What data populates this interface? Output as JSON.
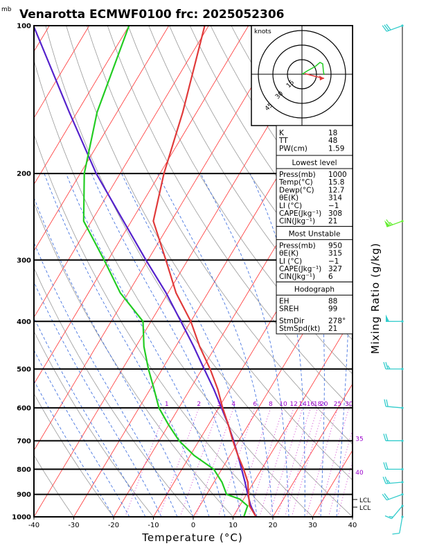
{
  "header": {
    "unit": "mb",
    "title": "Venarotta ECMWF0100  frc: 2025052306"
  },
  "chart_data": {
    "type": "skew-t",
    "xlabel": "Temperature (°C)",
    "ylabel_right": "Mixing Ratio (g/kg)",
    "x_range": [
      -40,
      40
    ],
    "x_ticks": [
      -40,
      -30,
      -20,
      -10,
      0,
      10,
      20,
      30,
      40
    ],
    "p_range": [
      1000,
      100
    ],
    "p_ticks": [
      1000,
      900,
      800,
      700,
      600,
      500,
      400,
      300,
      200,
      100
    ],
    "temperature_profile": [
      {
        "p": 1000,
        "t": 15.8
      },
      {
        "p": 950,
        "t": 12.5
      },
      {
        "p": 900,
        "t": 10.5
      },
      {
        "p": 850,
        "t": 8.5
      },
      {
        "p": 800,
        "t": 5.5
      },
      {
        "p": 750,
        "t": 2.0
      },
      {
        "p": 700,
        "t": -1.5
      },
      {
        "p": 650,
        "t": -5.0
      },
      {
        "p": 600,
        "t": -9.0
      },
      {
        "p": 550,
        "t": -13.0
      },
      {
        "p": 500,
        "t": -18.0
      },
      {
        "p": 450,
        "t": -24.0
      },
      {
        "p": 400,
        "t": -30.0
      },
      {
        "p": 350,
        "t": -38.0
      },
      {
        "p": 300,
        "t": -45.5
      },
      {
        "p": 250,
        "t": -54.5
      },
      {
        "p": 200,
        "t": -59.0
      },
      {
        "p": 150,
        "t": -63.5
      },
      {
        "p": 100,
        "t": -71.0
      }
    ],
    "dewpoint_profile": [
      {
        "p": 1000,
        "t": 12.7
      },
      {
        "p": 950,
        "t": 12.0
      },
      {
        "p": 920,
        "t": 9.0
      },
      {
        "p": 900,
        "t": 5.0
      },
      {
        "p": 850,
        "t": 2.0
      },
      {
        "p": 800,
        "t": -2.0
      },
      {
        "p": 750,
        "t": -9.0
      },
      {
        "p": 700,
        "t": -15.0
      },
      {
        "p": 650,
        "t": -20.0
      },
      {
        "p": 600,
        "t": -25.0
      },
      {
        "p": 550,
        "t": -29.0
      },
      {
        "p": 500,
        "t": -33.5
      },
      {
        "p": 450,
        "t": -38.0
      },
      {
        "p": 400,
        "t": -42.0
      },
      {
        "p": 350,
        "t": -52.0
      },
      {
        "p": 300,
        "t": -61.0
      },
      {
        "p": 250,
        "t": -72.0
      },
      {
        "p": 200,
        "t": -79.0
      },
      {
        "p": 150,
        "t": -85.0
      },
      {
        "p": 100,
        "t": -90.0
      }
    ],
    "parcel_profile": [
      {
        "p": 1000,
        "t": 15.8
      },
      {
        "p": 950,
        "t": 12.8
      },
      {
        "p": 900,
        "t": 10.3
      },
      {
        "p": 850,
        "t": 7.8
      },
      {
        "p": 800,
        "t": 5.0
      },
      {
        "p": 750,
        "t": 2.0
      },
      {
        "p": 700,
        "t": -1.3
      },
      {
        "p": 650,
        "t": -5.0
      },
      {
        "p": 600,
        "t": -9.3
      },
      {
        "p": 550,
        "t": -14.0
      },
      {
        "p": 500,
        "t": -19.5
      },
      {
        "p": 450,
        "t": -25.5
      },
      {
        "p": 400,
        "t": -32.5
      },
      {
        "p": 350,
        "t": -40.5
      },
      {
        "p": 300,
        "t": -50.5
      },
      {
        "p": 250,
        "t": -62.0
      },
      {
        "p": 200,
        "t": -76.0
      },
      {
        "p": 150,
        "t": -92.0
      },
      {
        "p": 100,
        "t": -114.0
      }
    ],
    "mixing_ratio_labels": [
      "1",
      "2",
      "3",
      "4",
      "6",
      "8",
      "10",
      "12",
      "14",
      "16",
      "18",
      "20",
      "25",
      "30",
      "35",
      "40"
    ],
    "lcl_labels": [
      "LCL",
      "LCL"
    ],
    "hodograph": {
      "unit": "knots",
      "rings": [
        "15",
        "30",
        "45"
      ]
    },
    "indices": {
      "general": [
        {
          "label": "K",
          "value": "18"
        },
        {
          "label": "TT",
          "value": "48"
        },
        {
          "label": "PW(cm)",
          "value": "1.59"
        }
      ],
      "lowest_level": {
        "title": "Lowest level",
        "rows": [
          {
            "label": "Press(mb)",
            "value": "1000"
          },
          {
            "label": "Temp(°C)",
            "value": "15.8"
          },
          {
            "label": "Dewp(°C)",
            "value": "12.7"
          },
          {
            "label": "θE(K)",
            "value": "314"
          },
          {
            "label": "LI (°C)",
            "value": "−1"
          },
          {
            "label": "CAPE(Jkg⁻¹)",
            "value": "308"
          },
          {
            "label": "CIN(Jkg⁻¹)",
            "value": "21"
          }
        ]
      },
      "most_unstable": {
        "title": "Most Unstable",
        "rows": [
          {
            "label": "Press(mb)",
            "value": "950"
          },
          {
            "label": "θE(K)",
            "value": "315"
          },
          {
            "label": "LI (°C)",
            "value": "−1"
          },
          {
            "label": "CAPE(Jkg⁻¹)",
            "value": "327"
          },
          {
            "label": "CIN(Jkg⁻¹)",
            "value": "6"
          }
        ]
      },
      "hodograph_box": {
        "title": "Hodograph",
        "rows": [
          {
            "label": "EH",
            "value": "88"
          },
          {
            "label": "SREH",
            "value": "99"
          }
        ],
        "rows2": [
          {
            "label": "StmDir",
            "value": "278°"
          },
          {
            "label": "StmSpd(kt)",
            "value": "21"
          }
        ]
      }
    },
    "wind_barbs": [
      {
        "p": 100,
        "dir": 250,
        "spd": 30
      },
      {
        "p": 250,
        "dir": 250,
        "spd": 65
      },
      {
        "p": 400,
        "dir": 270,
        "spd": 50
      },
      {
        "p": 500,
        "dir": 270,
        "spd": 25
      },
      {
        "p": 600,
        "dir": 275,
        "spd": 20
      },
      {
        "p": 700,
        "dir": 270,
        "spd": 20
      },
      {
        "p": 800,
        "dir": 270,
        "spd": 20
      },
      {
        "p": 850,
        "dir": 265,
        "spd": 25
      },
      {
        "p": 900,
        "dir": 250,
        "spd": 20
      },
      {
        "p": 950,
        "dir": 220,
        "spd": 15
      },
      {
        "p": 1000,
        "dir": 190,
        "spd": 10
      }
    ],
    "colors": {
      "temperature": "#e03a3a",
      "dewpoint": "#22cc22",
      "parcel": "#5522cc",
      "isotherm": "#ff3333",
      "dry_adiabat": "#999999",
      "moist_adiabat": "#3366dd",
      "mixing_ratio": "#cc33cc",
      "barb_low": "#33cccc",
      "barb_mid": "#66ee33"
    }
  }
}
